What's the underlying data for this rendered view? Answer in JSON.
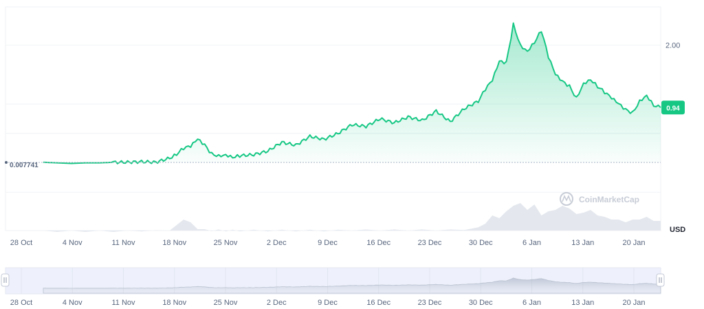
{
  "chart_data": {
    "type": "area",
    "currency": "USD",
    "y_ticks": [
      "2.00"
    ],
    "ylim": [
      -1.15,
      2.65
    ],
    "baseline_value": 0.007741,
    "baseline_label": "0.007741",
    "current_value": 0.94,
    "current_label": "0.94",
    "x_tick_labels": [
      "28 Oct",
      "4 Nov",
      "11 Nov",
      "18 Nov",
      "25 Nov",
      "2 Dec",
      "9 Dec",
      "16 Dec",
      "23 Dec",
      "30 Dec",
      "6 Jan",
      "13 Jan",
      "20 Jan"
    ],
    "navigator_tick_labels": [
      "28 Oct",
      "4 Nov",
      "11 Nov",
      "18 Nov",
      "25 Nov",
      "2 Dec",
      "9 Dec",
      "16 Dec",
      "23 Dec",
      "30 Dec",
      "6 Jan",
      "13 Jan",
      "20 Jan"
    ],
    "x_days": [
      0,
      2,
      4,
      6,
      8,
      10,
      12,
      14,
      16,
      18,
      19,
      20,
      21,
      22,
      23,
      24,
      25,
      26,
      27,
      28,
      30,
      32,
      34,
      36,
      38,
      40,
      42,
      44,
      46,
      48,
      50,
      52,
      54,
      56,
      58,
      60,
      62,
      63,
      64,
      65,
      66,
      67,
      68,
      69,
      70,
      71,
      72,
      73,
      74,
      75,
      76,
      77,
      78,
      79,
      80,
      81,
      82,
      83,
      84,
      85,
      86,
      87,
      88
    ],
    "price": [
      0.01,
      0.0,
      -0.01,
      0.0,
      0.0,
      0.01,
      0.01,
      0.02,
      0.01,
      0.08,
      0.15,
      0.25,
      0.28,
      0.4,
      0.3,
      0.15,
      0.12,
      0.14,
      0.1,
      0.12,
      0.14,
      0.2,
      0.35,
      0.3,
      0.45,
      0.4,
      0.5,
      0.65,
      0.62,
      0.75,
      0.68,
      0.78,
      0.72,
      0.88,
      0.7,
      0.92,
      1.05,
      1.25,
      1.4,
      1.72,
      1.7,
      2.35,
      2.0,
      1.9,
      2.05,
      2.25,
      1.8,
      1.5,
      1.38,
      1.3,
      1.1,
      1.35,
      1.42,
      1.3,
      1.2,
      1.1,
      1.0,
      0.9,
      0.85,
      1.05,
      1.15,
      0.98,
      0.94
    ],
    "volume": [
      0.0,
      0.0,
      0.0,
      0.0,
      0.0,
      0.0,
      0.0,
      0.02,
      0.01,
      0.05,
      0.2,
      0.45,
      0.3,
      0.1,
      0.05,
      0.03,
      0.04,
      0.02,
      0.03,
      0.02,
      0.03,
      0.02,
      0.03,
      0.02,
      0.03,
      0.02,
      0.03,
      0.05,
      0.04,
      0.05,
      0.04,
      0.05,
      0.04,
      0.05,
      0.04,
      0.07,
      0.12,
      0.3,
      0.55,
      0.5,
      0.7,
      0.95,
      1.0,
      0.8,
      0.95,
      0.6,
      0.7,
      0.8,
      0.9,
      0.85,
      0.6,
      0.7,
      0.75,
      0.6,
      0.5,
      0.45,
      0.4,
      0.35,
      0.4,
      0.45,
      0.5,
      0.4,
      0.35
    ],
    "watermark": "CoinMarketCap",
    "line_color": "#16c784",
    "grid": true,
    "legend": "none"
  }
}
